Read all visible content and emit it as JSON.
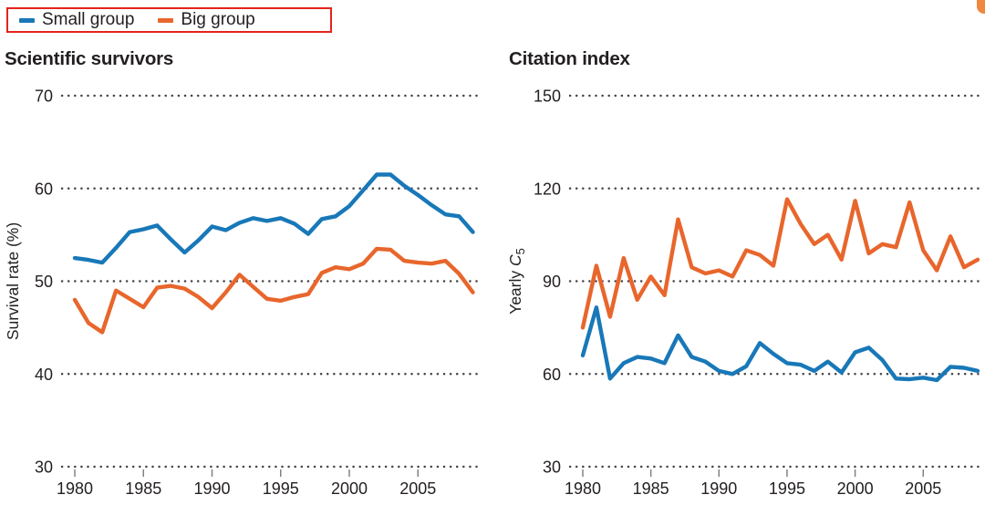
{
  "legend": {
    "border_color": "#e5231b",
    "items": [
      {
        "label": "Small group",
        "color": "#1878b8"
      },
      {
        "label": "Big group",
        "color": "#e8662c"
      }
    ]
  },
  "decoration": {
    "corner_tab_color": "#f0893f"
  },
  "colors": {
    "small_group": "#1878b8",
    "big_group": "#e8662c",
    "grid_dots": "#454244",
    "text": "#231f20"
  },
  "chart_data": [
    {
      "type": "line",
      "title": "Scientific survivors",
      "ylabel": {
        "prefix": "Survival rate (%)"
      },
      "ylim": [
        30,
        70
      ],
      "yticks": [
        30,
        40,
        50,
        60,
        70
      ],
      "xticks": [
        1980,
        1985,
        1990,
        1995,
        2000,
        2005
      ],
      "grid": "dotted-horizontal",
      "legend_position": "top-left-outside",
      "x": [
        1980,
        1981,
        1982,
        1983,
        1984,
        1985,
        1986,
        1987,
        1988,
        1989,
        1990,
        1991,
        1992,
        1993,
        1994,
        1995,
        1996,
        1997,
        1998,
        1999,
        2000,
        2001,
        2002,
        2003,
        2004,
        2005,
        2006,
        2007,
        2008,
        2009
      ],
      "series": [
        {
          "name": "Small group",
          "color": "#1878b8",
          "values": [
            52.5,
            52.3,
            52.0,
            53.6,
            55.3,
            55.6,
            56.0,
            54.5,
            53.1,
            54.4,
            55.9,
            55.5,
            56.3,
            56.8,
            56.5,
            56.8,
            56.2,
            55.1,
            56.7,
            57.0,
            58.1,
            59.8,
            61.5,
            61.5,
            60.3,
            59.3,
            58.2,
            57.2,
            57.0,
            55.3
          ]
        },
        {
          "name": "Big group",
          "color": "#e8662c",
          "values": [
            48.0,
            45.5,
            44.5,
            49.0,
            48.1,
            47.2,
            49.3,
            49.5,
            49.2,
            48.3,
            47.1,
            48.8,
            50.7,
            49.4,
            48.1,
            47.9,
            48.3,
            48.6,
            50.9,
            51.5,
            51.3,
            51.9,
            53.5,
            53.4,
            52.2,
            52.0,
            51.9,
            52.2,
            50.8,
            48.8
          ]
        }
      ]
    },
    {
      "type": "line",
      "title": "Citation index",
      "ylabel": {
        "prefix": "Yearly ",
        "var": "C",
        "sub": "5"
      },
      "ylim": [
        30,
        150
      ],
      "yticks": [
        30,
        60,
        90,
        120,
        150
      ],
      "xticks": [
        1980,
        1985,
        1990,
        1995,
        2000,
        2005
      ],
      "grid": "dotted-horizontal",
      "x": [
        1980,
        1981,
        1982,
        1983,
        1984,
        1985,
        1986,
        1987,
        1988,
        1989,
        1990,
        1991,
        1992,
        1993,
        1994,
        1995,
        1996,
        1997,
        1998,
        1999,
        2000,
        2001,
        2002,
        2003,
        2004,
        2005,
        2006,
        2007,
        2008,
        2009
      ],
      "series": [
        {
          "name": "Small group",
          "color": "#1878b8",
          "values": [
            66,
            81.5,
            58.5,
            63.5,
            65.5,
            65,
            63.5,
            72.5,
            65.5,
            64,
            61,
            60,
            62.5,
            70,
            66.5,
            63.5,
            63,
            61,
            64,
            60.5,
            67,
            68.5,
            64.5,
            58.5,
            58.3,
            58.8,
            58,
            62.3,
            62,
            61
          ]
        },
        {
          "name": "Big group",
          "color": "#e8662c",
          "values": [
            75,
            95,
            78.5,
            97.5,
            84,
            91.5,
            85.5,
            110,
            94.5,
            92.5,
            93.5,
            91.5,
            100,
            98.5,
            95,
            116.5,
            108.5,
            102,
            105,
            97,
            116,
            99,
            102,
            101,
            115.5,
            100,
            93.5,
            104.5,
            94.5,
            97
          ]
        }
      ]
    }
  ]
}
